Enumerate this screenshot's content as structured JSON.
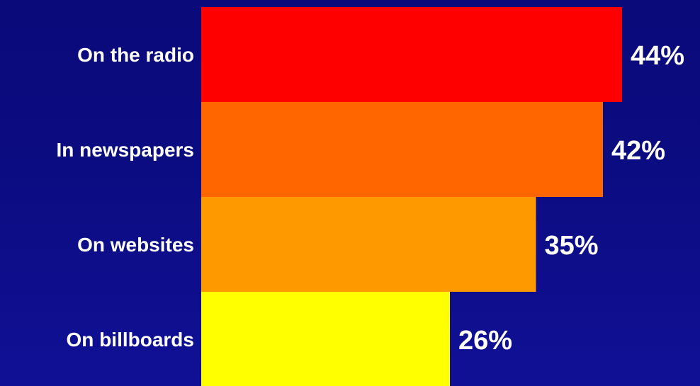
{
  "chart_data": {
    "type": "bar",
    "orientation": "horizontal",
    "categories": [
      "On the radio",
      "In newspapers",
      "On websites",
      "On billboards"
    ],
    "values": [
      44,
      42,
      35,
      26
    ],
    "value_labels": [
      "44%",
      "42%",
      "35%",
      "26%"
    ],
    "colors": [
      "#ff0000",
      "#ff6600",
      "#ff9900",
      "#ffff00"
    ],
    "xlim": [
      0,
      44
    ],
    "title": "",
    "xlabel": "",
    "ylabel": "",
    "grid": false,
    "legend": "none"
  },
  "colors": {
    "background": "#0c0c82",
    "text": "#ffffff"
  }
}
